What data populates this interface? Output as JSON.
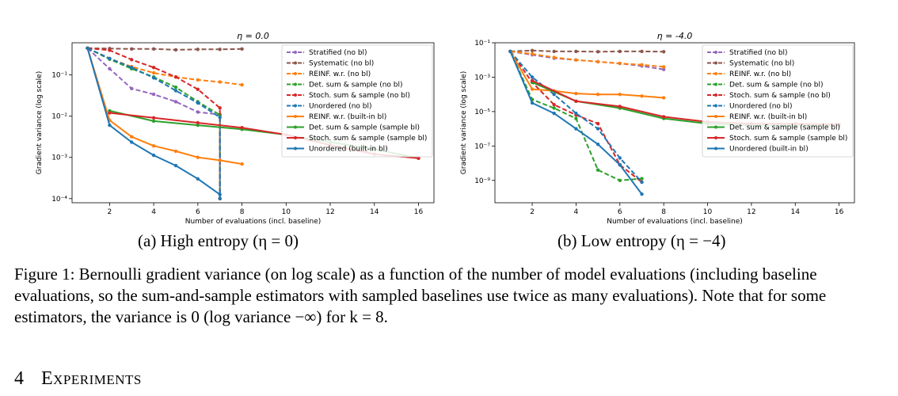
{
  "figure": {
    "subcaption_a": "(a) High entropy (η = 0)",
    "subcaption_b": "(b) Low entropy (η = −4)",
    "caption_label": "Figure 1:",
    "caption_text": "Bernoulli gradient variance (on log scale) as a function of the number of model evaluations (including baseline evaluations, so the sum-and-sample estimators with sampled baselines use twice as many evaluations). Note that for some estimators, the variance is 0 (log variance −∞) for k = 8."
  },
  "section": {
    "number": "4",
    "title": "Experiments"
  },
  "chart_data": [
    {
      "type": "line",
      "title": "η = 0.0",
      "xlabel": "Number of evaluations (incl. baseline)",
      "ylabel": "Gradient variance (log scale)",
      "xlim": [
        0.3,
        16.7
      ],
      "ylim_log10": [
        -4.1,
        -0.22
      ],
      "xticks": [
        2,
        4,
        6,
        8,
        10,
        12,
        14,
        16
      ],
      "yticks": [
        {
          "v": -4,
          "label": "10⁻⁴"
        },
        {
          "v": -3,
          "label": "10⁻³"
        },
        {
          "v": -2,
          "label": "10⁻²"
        },
        {
          "v": -1,
          "label": "10⁻¹"
        }
      ],
      "y_scale": "log",
      "legend_position": "upper right",
      "series": [
        {
          "name": "Stratified (no bl)",
          "color": "#9467bd",
          "dash": true,
          "x": [
            1,
            2,
            3,
            4,
            5,
            6,
            7,
            7
          ],
          "log10y": [
            -0.35,
            -0.85,
            -1.33,
            -1.47,
            -1.65,
            -1.9,
            -1.96,
            -4.0
          ]
        },
        {
          "name": "Systematic (no bl)",
          "color": "#8c564b",
          "dash": true,
          "x": [
            1,
            2,
            3,
            4,
            5,
            6,
            7,
            8
          ],
          "log10y": [
            -0.35,
            -0.36,
            -0.37,
            -0.37,
            -0.39,
            -0.38,
            -0.38,
            -0.37
          ]
        },
        {
          "name": "REINF. w.r. (no bl)",
          "color": "#ff7f0e",
          "dash": true,
          "x": [
            1,
            2,
            3,
            4,
            5,
            6,
            7,
            8
          ],
          "log10y": [
            -0.35,
            -0.6,
            -0.8,
            -0.95,
            -1.05,
            -1.12,
            -1.17,
            -1.24
          ]
        },
        {
          "name": "Det. sum & sample (no bl)",
          "color": "#2ca02c",
          "dash": true,
          "x": [
            1,
            2,
            3,
            4,
            5,
            6,
            7,
            7
          ],
          "log10y": [
            -0.35,
            -0.62,
            -0.85,
            -1.05,
            -1.3,
            -1.65,
            -1.97,
            -4.0
          ]
        },
        {
          "name": "Stoch. sum & sample (no bl)",
          "color": "#d62728",
          "dash": true,
          "x": [
            1,
            2,
            3,
            4,
            5,
            6,
            7,
            7
          ],
          "log10y": [
            -0.35,
            -0.4,
            -0.63,
            -0.82,
            -1.05,
            -1.35,
            -1.8,
            -4.0
          ]
        },
        {
          "name": "Unordered (no bl)",
          "color": "#1f77b4",
          "dash": true,
          "x": [
            1,
            2,
            3,
            4,
            5,
            6,
            7,
            7
          ],
          "log10y": [
            -0.35,
            -0.6,
            -0.82,
            -1.07,
            -1.38,
            -1.68,
            -2.03,
            -4.0
          ]
        },
        {
          "name": "REINF. w.r. (built-in bl)",
          "color": "#ff7f0e",
          "dash": false,
          "x": [
            1,
            2,
            3,
            4,
            5,
            6,
            7,
            8
          ],
          "log10y": [
            -0.35,
            -2.1,
            -2.5,
            -2.72,
            -2.85,
            -3.0,
            -3.07,
            -3.16
          ]
        },
        {
          "name": "Det. sum & sample (sample bl)",
          "color": "#2ca02c",
          "dash": false,
          "x": [
            2,
            4,
            6,
            8,
            10,
            12,
            14,
            16
          ],
          "log10y": [
            -1.87,
            -2.12,
            -2.22,
            -2.32,
            -2.45,
            -2.63,
            -2.8,
            -3.02
          ]
        },
        {
          "name": "Stoch. sum & sample (sample bl)",
          "color": "#d62728",
          "dash": false,
          "x": [
            2,
            4,
            6,
            8,
            10,
            12,
            14,
            16
          ],
          "log10y": [
            -1.92,
            -2.04,
            -2.16,
            -2.28,
            -2.45,
            -2.7,
            -2.92,
            -3.02
          ]
        },
        {
          "name": "Unordered (built-in bl)",
          "color": "#1f77b4",
          "dash": false,
          "x": [
            1,
            2,
            3,
            4,
            5,
            6,
            7
          ],
          "log10y": [
            -0.35,
            -2.22,
            -2.63,
            -2.95,
            -3.2,
            -3.52,
            -3.9
          ]
        }
      ]
    },
    {
      "type": "line",
      "title": "η = -4.0",
      "xlabel": "Number of evaluations (incl. baseline)",
      "ylabel": "Gradient variance (log scale)",
      "xlim": [
        0.3,
        16.7
      ],
      "ylim_log10": [
        -10.3,
        -1.0
      ],
      "xticks": [
        2,
        4,
        6,
        8,
        10,
        12,
        14,
        16
      ],
      "yticks": [
        {
          "v": -9,
          "label": "10⁻⁹"
        },
        {
          "v": -7,
          "label": "10⁻⁷"
        },
        {
          "v": -5,
          "label": "10⁻⁵"
        },
        {
          "v": -3,
          "label": "10⁻³"
        },
        {
          "v": -1,
          "label": "10⁻¹"
        }
      ],
      "y_scale": "log",
      "legend_position": "upper right",
      "series": [
        {
          "name": "Stratified (no bl)",
          "color": "#9467bd",
          "dash": true,
          "x": [
            1,
            2,
            3,
            4,
            5,
            6,
            7,
            8
          ],
          "log10y": [
            -1.5,
            -1.7,
            -1.9,
            -2.0,
            -2.1,
            -2.2,
            -2.35,
            -2.55
          ]
        },
        {
          "name": "Systematic (no bl)",
          "color": "#8c564b",
          "dash": true,
          "x": [
            1,
            2,
            3,
            4,
            5,
            6,
            7,
            8
          ],
          "log10y": [
            -1.5,
            -1.45,
            -1.5,
            -1.5,
            -1.52,
            -1.5,
            -1.5,
            -1.52
          ]
        },
        {
          "name": "REINF. w.r. (no bl)",
          "color": "#ff7f0e",
          "dash": true,
          "x": [
            1,
            2,
            3,
            4,
            5,
            6,
            7,
            8
          ],
          "log10y": [
            -1.5,
            -1.65,
            -1.85,
            -2.0,
            -2.1,
            -2.2,
            -2.28,
            -2.4
          ]
        },
        {
          "name": "Det. sum & sample (no bl)",
          "color": "#2ca02c",
          "dash": true,
          "x": [
            1,
            2,
            3,
            4,
            5,
            6,
            7
          ],
          "log10y": [
            -1.5,
            -4.3,
            -4.8,
            -5.4,
            -8.4,
            -9.0,
            -8.9
          ]
        },
        {
          "name": "Stoch. sum & sample (no bl)",
          "color": "#d62728",
          "dash": true,
          "x": [
            1,
            2,
            3,
            4,
            5,
            6,
            7
          ],
          "log10y": [
            -1.5,
            -3.3,
            -4.6,
            -5.2,
            -5.7,
            -8.1,
            -9.1
          ]
        },
        {
          "name": "Unordered (no bl)",
          "color": "#1f77b4",
          "dash": true,
          "x": [
            1,
            2,
            3,
            4,
            5,
            6,
            7
          ],
          "log10y": [
            -1.5,
            -3.0,
            -4.0,
            -5.1,
            -6.0,
            -7.7,
            -9.1
          ]
        },
        {
          "name": "REINF. w.r. (built-in bl)",
          "color": "#ff7f0e",
          "dash": false,
          "x": [
            1,
            2,
            3,
            4,
            5,
            6,
            7,
            8
          ],
          "log10y": [
            -1.5,
            -3.7,
            -3.8,
            -3.95,
            -4.0,
            -4.0,
            -4.1,
            -4.2
          ]
        },
        {
          "name": "Det. sum & sample (sample bl)",
          "color": "#2ca02c",
          "dash": false,
          "x": [
            2,
            4,
            6,
            8,
            10,
            12,
            14,
            16
          ],
          "log10y": [
            -3.3,
            -4.4,
            -4.8,
            -5.4,
            -5.7,
            -5.8,
            -5.8,
            -5.8
          ]
        },
        {
          "name": "Stoch. sum & sample (sample bl)",
          "color": "#d62728",
          "dash": false,
          "x": [
            2,
            4,
            6,
            8,
            10,
            12,
            14,
            16
          ],
          "log10y": [
            -3.2,
            -4.4,
            -4.7,
            -5.3,
            -5.6,
            -5.7,
            -5.7,
            -5.75
          ]
        },
        {
          "name": "Unordered (built-in bl)",
          "color": "#1f77b4",
          "dash": false,
          "x": [
            1,
            2,
            3,
            4,
            5,
            6,
            7
          ],
          "log10y": [
            -1.5,
            -4.5,
            -5.1,
            -6.0,
            -6.9,
            -8.1,
            -9.8
          ]
        }
      ]
    }
  ]
}
